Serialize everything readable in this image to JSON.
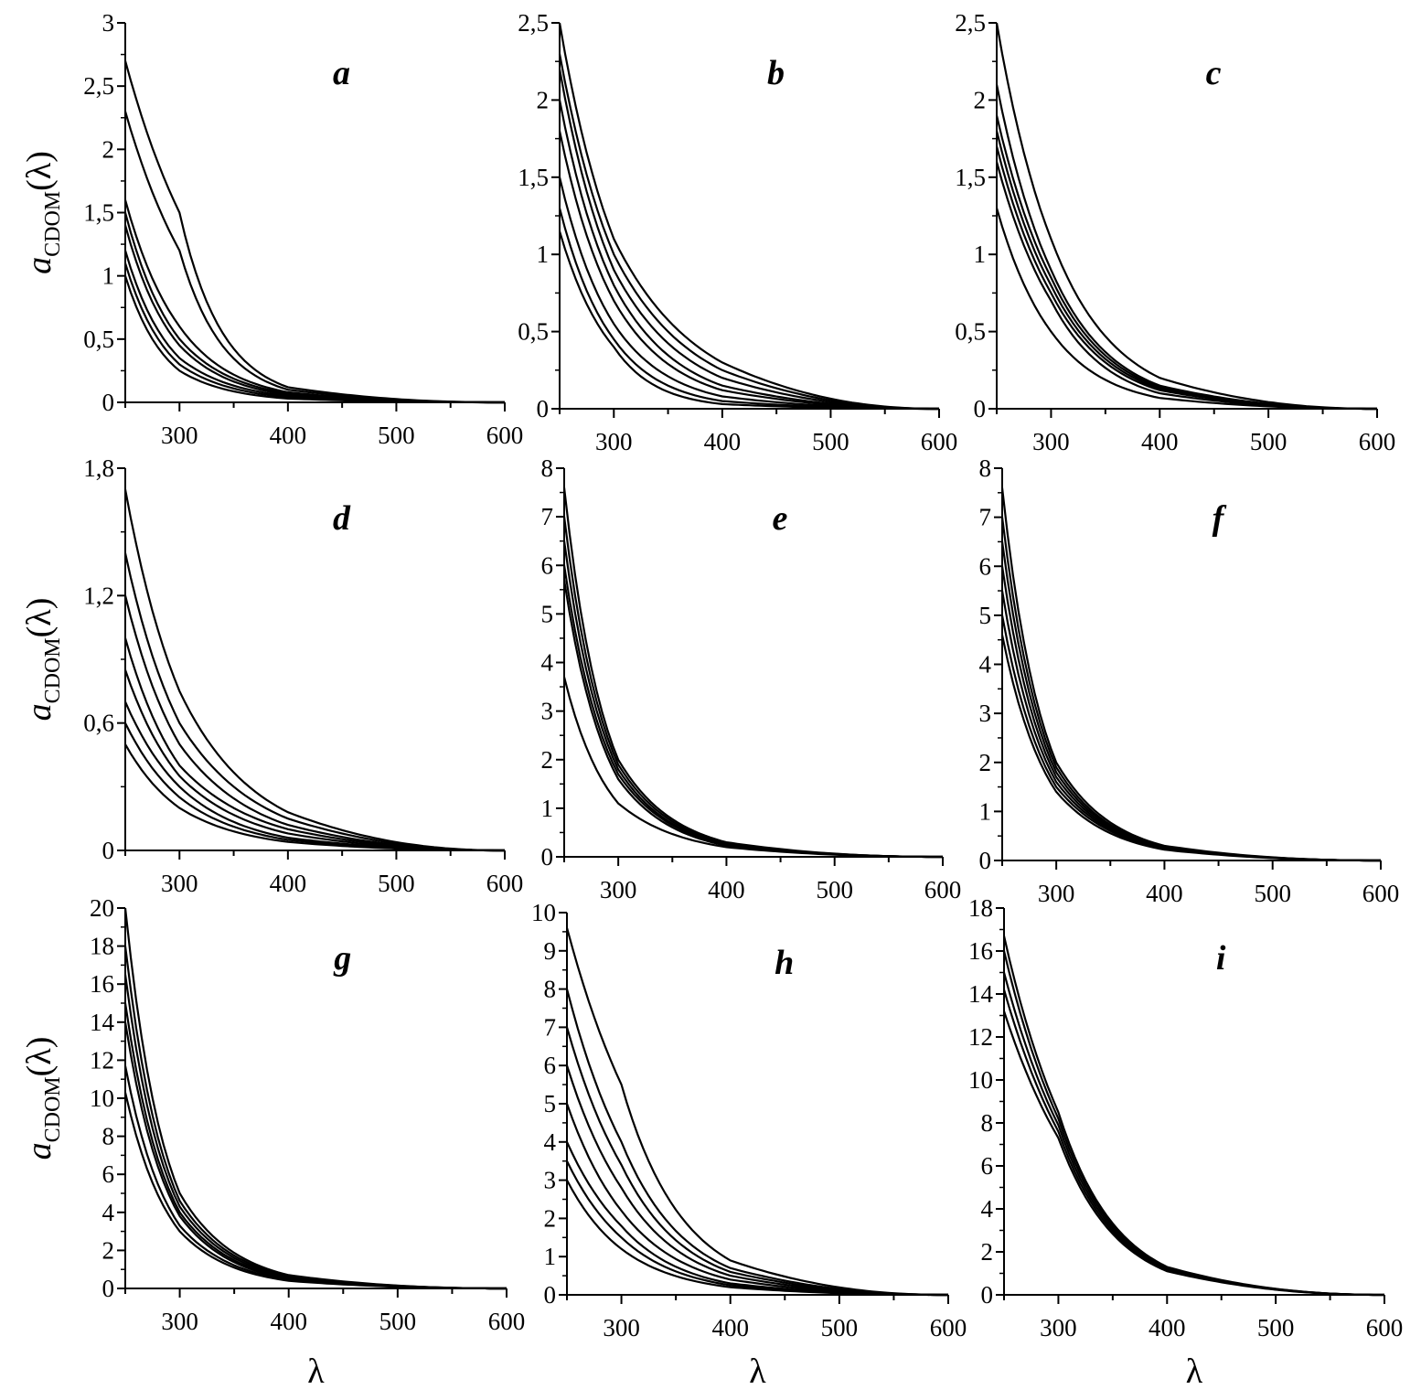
{
  "figure": {
    "ylabel_main": "a",
    "ylabel_sub": "CDOM",
    "ylabel_paren": "(λ)",
    "xlabel": "λ"
  },
  "chart_data": [
    {
      "panel": "a",
      "type": "line",
      "xlim": [
        250,
        600
      ],
      "ylim": [
        0,
        3
      ],
      "yticks": [
        0,
        0.5,
        1,
        1.5,
        2,
        2.5,
        3
      ],
      "ytick_labels": [
        "0",
        "0,5",
        "1",
        "1,5",
        "2",
        "2,5",
        "3"
      ],
      "xticks": [
        300,
        400,
        500,
        600
      ],
      "xtick_labels": [
        "300",
        "400",
        "500",
        "600"
      ],
      "series": [
        {
          "x": [
            250,
            300,
            400,
            600
          ],
          "values": [
            2.7,
            1.5,
            0.12,
            0
          ]
        },
        {
          "x": [
            250,
            300,
            400,
            600
          ],
          "values": [
            2.3,
            1.2,
            0.1,
            0
          ]
        },
        {
          "x": [
            250,
            300,
            400,
            600
          ],
          "values": [
            1.6,
            0.6,
            0.08,
            0
          ]
        },
        {
          "x": [
            250,
            300,
            400,
            600
          ],
          "values": [
            1.5,
            0.5,
            0.07,
            0
          ]
        },
        {
          "x": [
            250,
            300,
            400,
            600
          ],
          "values": [
            1.4,
            0.45,
            0.06,
            0
          ]
        },
        {
          "x": [
            250,
            300,
            400,
            600
          ],
          "values": [
            1.2,
            0.35,
            0.05,
            0
          ]
        },
        {
          "x": [
            250,
            300,
            400,
            600
          ],
          "values": [
            1.1,
            0.3,
            0.04,
            0
          ]
        },
        {
          "x": [
            250,
            300,
            400,
            600
          ],
          "values": [
            1.0,
            0.25,
            0.03,
            0
          ]
        }
      ]
    },
    {
      "panel": "b",
      "type": "line",
      "xlim": [
        250,
        600
      ],
      "ylim": [
        0,
        2.5
      ],
      "yticks": [
        0,
        0.5,
        1,
        1.5,
        2,
        2.5
      ],
      "ytick_labels": [
        "0",
        "0,5",
        "1",
        "1,5",
        "2",
        "2,5"
      ],
      "xticks": [
        300,
        400,
        500,
        600
      ],
      "xtick_labels": [
        "300",
        "400",
        "500",
        "600"
      ],
      "series": [
        {
          "x": [
            250,
            300,
            400,
            600
          ],
          "values": [
            2.5,
            1.1,
            0.3,
            0
          ]
        },
        {
          "x": [
            250,
            300,
            400,
            600
          ],
          "values": [
            2.3,
            1.0,
            0.25,
            0
          ]
        },
        {
          "x": [
            250,
            300,
            400,
            600
          ],
          "values": [
            2.2,
            0.9,
            0.2,
            0
          ]
        },
        {
          "x": [
            250,
            300,
            400,
            600
          ],
          "values": [
            2.0,
            0.8,
            0.15,
            0
          ]
        },
        {
          "x": [
            250,
            300,
            400,
            600
          ],
          "values": [
            1.8,
            0.7,
            0.12,
            0
          ]
        },
        {
          "x": [
            250,
            300,
            400,
            600
          ],
          "values": [
            1.5,
            0.55,
            0.08,
            0
          ]
        },
        {
          "x": [
            250,
            300,
            400,
            600
          ],
          "values": [
            1.3,
            0.45,
            0.05,
            0
          ]
        },
        {
          "x": [
            250,
            300,
            400,
            600
          ],
          "values": [
            1.15,
            0.4,
            0.03,
            0
          ]
        }
      ]
    },
    {
      "panel": "c",
      "type": "line",
      "xlim": [
        250,
        600
      ],
      "ylim": [
        0,
        2.5
      ],
      "yticks": [
        0,
        0.5,
        1,
        1.5,
        2,
        2.5
      ],
      "ytick_labels": [
        "0",
        "0,5",
        "1",
        "1,5",
        "2",
        "2,5"
      ],
      "xticks": [
        300,
        400,
        500,
        600
      ],
      "xtick_labels": [
        "300",
        "400",
        "500",
        "600"
      ],
      "series": [
        {
          "x": [
            250,
            300,
            400,
            600
          ],
          "values": [
            2.5,
            1.1,
            0.2,
            0
          ]
        },
        {
          "x": [
            250,
            300,
            400,
            600
          ],
          "values": [
            2.1,
            0.9,
            0.15,
            0
          ]
        },
        {
          "x": [
            250,
            300,
            400,
            600
          ],
          "values": [
            1.9,
            0.85,
            0.14,
            0
          ]
        },
        {
          "x": [
            250,
            300,
            400,
            600
          ],
          "values": [
            1.8,
            0.8,
            0.13,
            0
          ]
        },
        {
          "x": [
            250,
            300,
            400,
            600
          ],
          "values": [
            1.7,
            0.75,
            0.12,
            0
          ]
        },
        {
          "x": [
            250,
            300,
            400,
            600
          ],
          "values": [
            1.6,
            0.7,
            0.1,
            0
          ]
        },
        {
          "x": [
            250,
            300,
            400,
            600
          ],
          "values": [
            1.3,
            0.5,
            0.07,
            0
          ]
        }
      ]
    },
    {
      "panel": "d",
      "type": "line",
      "xlim": [
        250,
        600
      ],
      "ylim": [
        0,
        1.8
      ],
      "yticks": [
        0,
        0.6,
        1.2,
        1.8
      ],
      "ytick_labels": [
        "0",
        "0,6",
        "1,2",
        "1,8"
      ],
      "xticks": [
        300,
        400,
        500,
        600
      ],
      "xtick_labels": [
        "300",
        "400",
        "500",
        "600"
      ],
      "series": [
        {
          "x": [
            250,
            300,
            400,
            600
          ],
          "values": [
            1.7,
            0.75,
            0.18,
            0
          ]
        },
        {
          "x": [
            250,
            300,
            400,
            600
          ],
          "values": [
            1.4,
            0.6,
            0.15,
            0
          ]
        },
        {
          "x": [
            250,
            300,
            400,
            600
          ],
          "values": [
            1.2,
            0.5,
            0.12,
            0
          ]
        },
        {
          "x": [
            250,
            300,
            400,
            600
          ],
          "values": [
            1.0,
            0.4,
            0.1,
            0
          ]
        },
        {
          "x": [
            250,
            300,
            400,
            600
          ],
          "values": [
            0.85,
            0.35,
            0.08,
            0
          ]
        },
        {
          "x": [
            250,
            300,
            400,
            600
          ],
          "values": [
            0.7,
            0.3,
            0.06,
            0
          ]
        },
        {
          "x": [
            250,
            300,
            400,
            600
          ],
          "values": [
            0.6,
            0.25,
            0.05,
            0
          ]
        },
        {
          "x": [
            250,
            300,
            400,
            600
          ],
          "values": [
            0.5,
            0.2,
            0.04,
            0
          ]
        }
      ]
    },
    {
      "panel": "e",
      "type": "line",
      "xlim": [
        250,
        600
      ],
      "ylim": [
        0,
        8
      ],
      "yticks": [
        0,
        1,
        2,
        3,
        4,
        5,
        6,
        7,
        8
      ],
      "ytick_labels": [
        "0",
        "1",
        "2",
        "3",
        "4",
        "5",
        "6",
        "7",
        "8"
      ],
      "xticks": [
        300,
        400,
        500,
        600
      ],
      "xtick_labels": [
        "300",
        "400",
        "500",
        "600"
      ],
      "series": [
        {
          "x": [
            250,
            300,
            400,
            600
          ],
          "values": [
            7.6,
            2.0,
            0.3,
            0
          ]
        },
        {
          "x": [
            250,
            300,
            400,
            600
          ],
          "values": [
            7.0,
            1.9,
            0.28,
            0
          ]
        },
        {
          "x": [
            250,
            300,
            400,
            600
          ],
          "values": [
            6.5,
            1.8,
            0.26,
            0
          ]
        },
        {
          "x": [
            250,
            300,
            400,
            600
          ],
          "values": [
            6.0,
            1.7,
            0.25,
            0
          ]
        },
        {
          "x": [
            250,
            300,
            400,
            600
          ],
          "values": [
            5.7,
            1.6,
            0.23,
            0
          ]
        },
        {
          "x": [
            250,
            300,
            400,
            600
          ],
          "values": [
            3.7,
            1.1,
            0.2,
            0
          ]
        }
      ]
    },
    {
      "panel": "f",
      "type": "line",
      "xlim": [
        250,
        600
      ],
      "ylim": [
        0,
        8
      ],
      "yticks": [
        0,
        1,
        2,
        3,
        4,
        5,
        6,
        7,
        8
      ],
      "ytick_labels": [
        "0",
        "1",
        "2",
        "3",
        "4",
        "5",
        "6",
        "7",
        "8"
      ],
      "xticks": [
        300,
        400,
        500,
        600
      ],
      "xtick_labels": [
        "300",
        "400",
        "500",
        "600"
      ],
      "series": [
        {
          "x": [
            250,
            300,
            400,
            600
          ],
          "values": [
            7.6,
            2.0,
            0.3,
            0
          ]
        },
        {
          "x": [
            250,
            300,
            400,
            600
          ],
          "values": [
            7.0,
            1.9,
            0.28,
            0
          ]
        },
        {
          "x": [
            250,
            300,
            400,
            600
          ],
          "values": [
            6.5,
            1.8,
            0.27,
            0
          ]
        },
        {
          "x": [
            250,
            300,
            400,
            600
          ],
          "values": [
            6.0,
            1.7,
            0.26,
            0
          ]
        },
        {
          "x": [
            250,
            300,
            400,
            600
          ],
          "values": [
            5.5,
            1.6,
            0.25,
            0
          ]
        },
        {
          "x": [
            250,
            300,
            400,
            600
          ],
          "values": [
            5.0,
            1.5,
            0.24,
            0
          ]
        },
        {
          "x": [
            250,
            300,
            400,
            600
          ],
          "values": [
            4.6,
            1.4,
            0.22,
            0
          ]
        }
      ]
    },
    {
      "panel": "g",
      "type": "line",
      "xlim": [
        250,
        600
      ],
      "ylim": [
        0,
        20
      ],
      "yticks": [
        0,
        2,
        4,
        6,
        8,
        10,
        12,
        14,
        16,
        18,
        20
      ],
      "ytick_labels": [
        "0",
        "2",
        "4",
        "6",
        "8",
        "10",
        "12",
        "14",
        "16",
        "18",
        "20"
      ],
      "xticks": [
        300,
        400,
        500,
        600
      ],
      "xtick_labels": [
        "300",
        "400",
        "500",
        "600"
      ],
      "series": [
        {
          "x": [
            250,
            300,
            400,
            600
          ],
          "values": [
            20,
            5.0,
            0.7,
            0
          ]
        },
        {
          "x": [
            250,
            300,
            400,
            600
          ],
          "values": [
            18,
            4.6,
            0.65,
            0
          ]
        },
        {
          "x": [
            250,
            300,
            400,
            600
          ],
          "values": [
            16.5,
            4.3,
            0.6,
            0
          ]
        },
        {
          "x": [
            250,
            300,
            400,
            600
          ],
          "values": [
            15,
            4.0,
            0.55,
            0
          ]
        },
        {
          "x": [
            250,
            300,
            400,
            600
          ],
          "values": [
            14,
            3.8,
            0.5,
            0
          ]
        },
        {
          "x": [
            250,
            300,
            400,
            600
          ],
          "values": [
            11.7,
            3.3,
            0.45,
            0
          ]
        },
        {
          "x": [
            250,
            300,
            400,
            600
          ],
          "values": [
            10.3,
            3.0,
            0.4,
            0
          ]
        }
      ]
    },
    {
      "panel": "h",
      "type": "line",
      "xlim": [
        250,
        600
      ],
      "ylim": [
        0,
        10
      ],
      "yticks": [
        0,
        1,
        2,
        3,
        4,
        5,
        6,
        7,
        8,
        9,
        10
      ],
      "ytick_labels": [
        "0",
        "1",
        "2",
        "3",
        "4",
        "5",
        "6",
        "7",
        "8",
        "9",
        "10"
      ],
      "xticks": [
        300,
        400,
        500,
        600
      ],
      "xtick_labels": [
        "300",
        "400",
        "500",
        "600"
      ],
      "series": [
        {
          "x": [
            250,
            300,
            400,
            600
          ],
          "values": [
            9.6,
            5.5,
            0.9,
            0
          ]
        },
        {
          "x": [
            250,
            300,
            400,
            600
          ],
          "values": [
            8.0,
            4.0,
            0.7,
            0
          ]
        },
        {
          "x": [
            250,
            300,
            400,
            600
          ],
          "values": [
            7.0,
            3.4,
            0.6,
            0
          ]
        },
        {
          "x": [
            250,
            300,
            400,
            600
          ],
          "values": [
            6.0,
            2.8,
            0.5,
            0
          ]
        },
        {
          "x": [
            250,
            300,
            400,
            600
          ],
          "values": [
            5.0,
            2.2,
            0.4,
            0
          ]
        },
        {
          "x": [
            250,
            300,
            400,
            600
          ],
          "values": [
            4.0,
            1.8,
            0.3,
            0
          ]
        },
        {
          "x": [
            250,
            300,
            400,
            600
          ],
          "values": [
            3.5,
            1.5,
            0.25,
            0
          ]
        },
        {
          "x": [
            250,
            300,
            400,
            600
          ],
          "values": [
            3.0,
            1.2,
            0.2,
            0
          ]
        }
      ]
    },
    {
      "panel": "i",
      "type": "line",
      "xlim": [
        250,
        600
      ],
      "ylim": [
        0,
        18
      ],
      "yticks": [
        0,
        2,
        4,
        6,
        8,
        10,
        12,
        14,
        16,
        18
      ],
      "ytick_labels": [
        "0",
        "2",
        "4",
        "6",
        "8",
        "10",
        "12",
        "14",
        "16",
        "18"
      ],
      "xticks": [
        300,
        400,
        500,
        600
      ],
      "xtick_labels": [
        "300",
        "400",
        "500",
        "600"
      ],
      "series": [
        {
          "x": [
            250,
            300,
            400,
            600
          ],
          "values": [
            16.7,
            8.5,
            1.3,
            0
          ]
        },
        {
          "x": [
            250,
            300,
            400,
            600
          ],
          "values": [
            16,
            8.2,
            1.25,
            0
          ]
        },
        {
          "x": [
            250,
            300,
            400,
            600
          ],
          "values": [
            15,
            7.9,
            1.2,
            0
          ]
        },
        {
          "x": [
            250,
            300,
            400,
            600
          ],
          "values": [
            14.2,
            7.6,
            1.15,
            0
          ]
        },
        {
          "x": [
            250,
            300,
            400,
            600
          ],
          "values": [
            13.2,
            7.3,
            1.1,
            0
          ]
        }
      ]
    }
  ]
}
